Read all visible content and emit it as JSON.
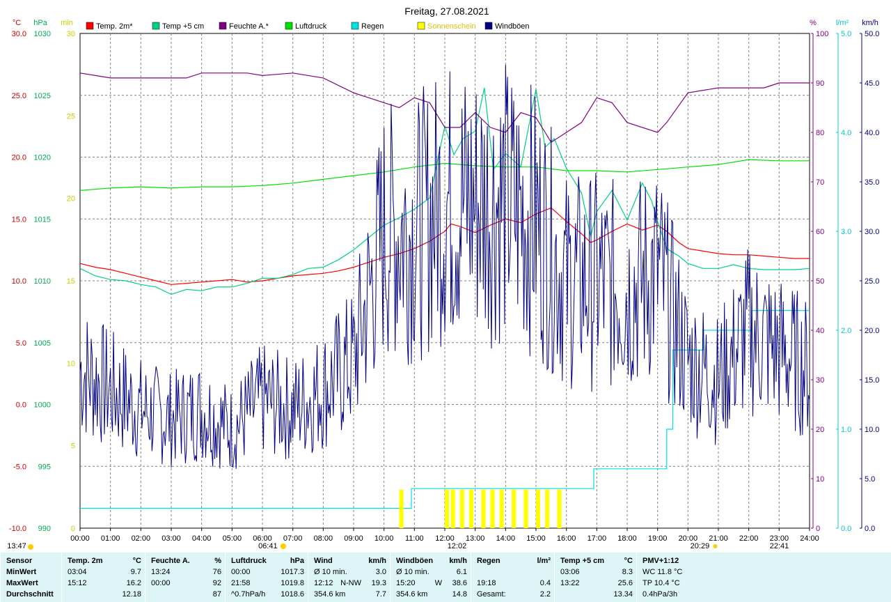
{
  "title": "Freitag, 27.08.2021",
  "colors": {
    "temp2m": "#ff0000",
    "temp5cm": "#00d080",
    "humidity": "#800080",
    "pressure": "#00e000",
    "rain": "#00e0e0",
    "sunshine": "#ffff00",
    "gusts": "#000080",
    "grid": "#808080",
    "stats_bg": "#ddf5f7"
  },
  "axis_units": {
    "temp": "°C",
    "pressure": "hPa",
    "sun": "min",
    "humidity": "%",
    "rain": "l/m²",
    "wind": "km/h"
  },
  "sun_events": {
    "sunrise": "06:41",
    "noon": "12:02",
    "sunset": "20:29",
    "moonrise": "13:47",
    "moonset": "22:41"
  },
  "chart_data": {
    "type": "line",
    "title": "Freitag, 27.08.2021",
    "x_ticks": [
      "00:00",
      "01:00",
      "02:00",
      "03:00",
      "04:00",
      "05:00",
      "06:00",
      "07:00",
      "08:00",
      "09:00",
      "10:00",
      "11:00",
      "12:00",
      "13:00",
      "14:00",
      "15:00",
      "16:00",
      "17:00",
      "18:00",
      "19:00",
      "20:00",
      "21:00",
      "22:00",
      "23:00",
      "24:00"
    ],
    "xlim": [
      0,
      24
    ],
    "grid": true,
    "legend_position": "top",
    "axes": {
      "temp": {
        "unit": "°C",
        "range": [
          -10,
          30
        ],
        "ticks": [
          "30.0",
          "25.0",
          "20.0",
          "15.0",
          "10.0",
          "5.0",
          "0.0",
          "-5.0",
          "-10.0"
        ]
      },
      "pressure": {
        "unit": "hPa",
        "range": [
          990,
          1030
        ],
        "ticks": [
          "1030",
          "1025",
          "1020",
          "1015",
          "1010",
          "1005",
          "1000",
          "995",
          "990"
        ]
      },
      "sunshine": {
        "unit": "min",
        "range": [
          0,
          30
        ],
        "ticks": [
          "30",
          "25",
          "20",
          "15",
          "10",
          "5",
          "0"
        ]
      },
      "humidity": {
        "unit": "%",
        "range": [
          0,
          100
        ],
        "ticks": [
          "100",
          "90",
          "80",
          "70",
          "60",
          "50",
          "40",
          "30",
          "20",
          "10",
          "0"
        ]
      },
      "rain": {
        "unit": "l/m²",
        "range": [
          0,
          5
        ],
        "ticks": [
          "5.0",
          "4.0",
          "3.0",
          "2.0",
          "1.0",
          "0.0"
        ]
      },
      "wind": {
        "unit": "km/h",
        "range": [
          0,
          50
        ],
        "ticks": [
          "50.0",
          "45.0",
          "40.0",
          "35.0",
          "30.0",
          "25.0",
          "20.0",
          "15.0",
          "10.0",
          "5.0",
          "0.0"
        ]
      }
    },
    "series": [
      {
        "name": "Temp. 2m*",
        "axis": "temp",
        "color": "#ff0000",
        "points": [
          [
            0,
            11.4
          ],
          [
            0.5,
            11.1
          ],
          [
            1,
            10.9
          ],
          [
            1.5,
            10.6
          ],
          [
            2,
            10.3
          ],
          [
            2.5,
            10.0
          ],
          [
            3,
            9.7
          ],
          [
            3.5,
            9.8
          ],
          [
            4,
            9.9
          ],
          [
            4.5,
            10.0
          ],
          [
            5,
            10.1
          ],
          [
            5.5,
            9.9
          ],
          [
            6,
            10.0
          ],
          [
            6.5,
            10.2
          ],
          [
            7,
            10.4
          ],
          [
            7.5,
            10.5
          ],
          [
            8,
            10.6
          ],
          [
            8.5,
            10.8
          ],
          [
            9,
            11.1
          ],
          [
            9.5,
            11.5
          ],
          [
            10,
            11.9
          ],
          [
            10.5,
            12.2
          ],
          [
            11,
            12.6
          ],
          [
            11.5,
            13.2
          ],
          [
            12,
            14.0
          ],
          [
            12.2,
            14.6
          ],
          [
            12.5,
            14.4
          ],
          [
            13,
            13.9
          ],
          [
            13.5,
            14.5
          ],
          [
            14,
            15.0
          ],
          [
            14.5,
            14.7
          ],
          [
            15,
            15.4
          ],
          [
            15.5,
            15.9
          ],
          [
            16,
            14.8
          ],
          [
            16.5,
            13.8
          ],
          [
            16.8,
            13.1
          ],
          [
            17,
            13.3
          ],
          [
            17.5,
            14.0
          ],
          [
            18,
            14.6
          ],
          [
            18.5,
            14.1
          ],
          [
            19,
            14.5
          ],
          [
            19.3,
            14.0
          ],
          [
            19.7,
            13.1
          ],
          [
            20,
            12.6
          ],
          [
            20.5,
            12.4
          ],
          [
            21,
            12.2
          ],
          [
            21.5,
            12.1
          ],
          [
            22,
            12.1
          ],
          [
            22.5,
            12.0
          ],
          [
            23,
            11.9
          ],
          [
            23.5,
            11.8
          ],
          [
            24,
            11.8
          ]
        ]
      },
      {
        "name": "Temp +5 cm",
        "axis": "temp",
        "color": "#00d080",
        "points": [
          [
            0,
            11.0
          ],
          [
            0.5,
            10.4
          ],
          [
            1,
            10.1
          ],
          [
            1.5,
            10.0
          ],
          [
            2,
            9.7
          ],
          [
            2.5,
            9.5
          ],
          [
            3,
            8.9
          ],
          [
            3.5,
            9.3
          ],
          [
            4,
            9.2
          ],
          [
            4.5,
            9.5
          ],
          [
            5,
            9.5
          ],
          [
            5.5,
            9.8
          ],
          [
            6,
            10.2
          ],
          [
            6.5,
            10.2
          ],
          [
            7,
            10.5
          ],
          [
            7.5,
            11.0
          ],
          [
            8,
            11.1
          ],
          [
            8.5,
            11.7
          ],
          [
            9,
            12.5
          ],
          [
            9.5,
            13.5
          ],
          [
            10,
            14.5
          ],
          [
            10.5,
            15.1
          ],
          [
            11,
            15.8
          ],
          [
            11.5,
            16.7
          ],
          [
            12,
            22.5
          ],
          [
            12.3,
            20.2
          ],
          [
            12.6,
            21.5
          ],
          [
            13,
            22.1
          ],
          [
            13.3,
            25.6
          ],
          [
            13.6,
            19.0
          ],
          [
            14,
            20.3
          ],
          [
            14.5,
            19.2
          ],
          [
            15,
            25.5
          ],
          [
            15.3,
            20.8
          ],
          [
            15.6,
            21.5
          ],
          [
            16,
            19.1
          ],
          [
            16.5,
            17.1
          ],
          [
            16.8,
            13.6
          ],
          [
            17,
            15.6
          ],
          [
            17.5,
            17.3
          ],
          [
            18,
            14.9
          ],
          [
            18.5,
            17.9
          ],
          [
            18.8,
            16.5
          ],
          [
            19,
            14.8
          ],
          [
            19.3,
            12.6
          ],
          [
            19.7,
            12.0
          ],
          [
            20,
            11.4
          ],
          [
            20.5,
            11.0
          ],
          [
            21,
            11.0
          ],
          [
            21.5,
            11.3
          ],
          [
            22,
            11.0
          ],
          [
            22.5,
            10.9
          ],
          [
            23,
            10.9
          ],
          [
            23.5,
            10.9
          ],
          [
            24,
            11.0
          ]
        ]
      },
      {
        "name": "Feuchte A.*",
        "axis": "humidity",
        "color": "#800080",
        "points": [
          [
            0,
            92
          ],
          [
            1,
            91
          ],
          [
            2,
            91
          ],
          [
            3,
            91
          ],
          [
            3.5,
            91
          ],
          [
            4,
            92
          ],
          [
            5,
            92
          ],
          [
            5.5,
            92
          ],
          [
            6,
            91.5
          ],
          [
            7,
            92
          ],
          [
            8,
            91
          ],
          [
            9,
            88
          ],
          [
            10,
            86
          ],
          [
            10.5,
            85
          ],
          [
            11,
            87
          ],
          [
            11.5,
            86
          ],
          [
            12,
            81
          ],
          [
            12.5,
            81
          ],
          [
            13,
            84
          ],
          [
            13.5,
            81
          ],
          [
            14,
            80
          ],
          [
            14.5,
            84
          ],
          [
            15,
            83
          ],
          [
            15.5,
            78
          ],
          [
            16,
            80
          ],
          [
            16.5,
            82
          ],
          [
            17,
            87
          ],
          [
            17.5,
            86
          ],
          [
            18,
            82
          ],
          [
            18.5,
            81
          ],
          [
            19,
            80
          ],
          [
            19.3,
            82
          ],
          [
            20,
            88
          ],
          [
            21,
            89
          ],
          [
            22,
            89
          ],
          [
            22.5,
            89
          ],
          [
            23,
            90
          ],
          [
            24,
            90
          ]
        ]
      },
      {
        "name": "Luftdruck",
        "axis": "pressure",
        "color": "#00e000",
        "points": [
          [
            0,
            1017.3
          ],
          [
            1,
            1017.5
          ],
          [
            2,
            1017.6
          ],
          [
            3,
            1017.5
          ],
          [
            4,
            1017.6
          ],
          [
            5,
            1017.6
          ],
          [
            6,
            1017.7
          ],
          [
            7,
            1017.9
          ],
          [
            8,
            1018.2
          ],
          [
            9,
            1018.5
          ],
          [
            10,
            1018.8
          ],
          [
            11,
            1019.2
          ],
          [
            12,
            1019.5
          ],
          [
            13,
            1019.3
          ],
          [
            14,
            1019.2
          ],
          [
            15,
            1019.2
          ],
          [
            16,
            1018.9
          ],
          [
            17,
            1018.9
          ],
          [
            18,
            1018.8
          ],
          [
            19,
            1019.0
          ],
          [
            20,
            1019.2
          ],
          [
            21,
            1019.4
          ],
          [
            22,
            1019.8
          ],
          [
            23,
            1019.7
          ],
          [
            24,
            1019.7
          ]
        ]
      },
      {
        "name": "Regen",
        "axis": "rain",
        "color": "#00e0e0",
        "points": [
          [
            0,
            0.2
          ],
          [
            10.8,
            0.2
          ],
          [
            10.9,
            0.4
          ],
          [
            16.8,
            0.4
          ],
          [
            16.9,
            0.6
          ],
          [
            19.0,
            0.6
          ],
          [
            19.3,
            1.0
          ],
          [
            19.5,
            1.8
          ],
          [
            20,
            1.8
          ],
          [
            20.5,
            2.0
          ],
          [
            22,
            2.0
          ],
          [
            22.1,
            2.2
          ],
          [
            24,
            2.2
          ]
        ]
      },
      {
        "name": "Sonnenschein",
        "axis": "sunshine",
        "color": "#ffff00",
        "bars": [
          [
            10.5,
            2
          ],
          [
            12.0,
            2
          ],
          [
            12.2,
            2
          ],
          [
            12.5,
            2
          ],
          [
            12.8,
            2
          ],
          [
            13.2,
            2
          ],
          [
            13.5,
            2
          ],
          [
            13.8,
            2
          ],
          [
            14.2,
            2
          ],
          [
            14.6,
            2
          ],
          [
            15.0,
            2
          ],
          [
            15.3,
            2
          ],
          [
            15.7,
            2
          ]
        ]
      },
      {
        "name": "Windböen",
        "axis": "wind",
        "color": "#000080",
        "hourly_values": [
          16,
          14,
          12,
          11,
          12,
          10,
          13,
          12,
          14,
          17,
          30,
          30,
          33,
          33,
          33,
          31,
          25,
          25,
          24,
          26,
          17,
          15,
          20,
          18,
          16
        ]
      }
    ]
  },
  "stats": {
    "columns": [
      {
        "header": "Sensor",
        "unit": "",
        "rows": [
          [
            "MinWert",
            "",
            ""
          ],
          [
            "MaxWert",
            "",
            ""
          ],
          [
            "Durchschnitt",
            "",
            ""
          ]
        ]
      },
      {
        "header": "Temp. 2m",
        "unit": "°C",
        "rows": [
          [
            "03:04",
            "",
            "9.7"
          ],
          [
            "15:12",
            "",
            "16.2"
          ],
          [
            "",
            "",
            "12.18"
          ]
        ]
      },
      {
        "header": "Feuchte A.",
        "unit": "%",
        "rows": [
          [
            "13:24",
            "",
            "76"
          ],
          [
            "00:00",
            "",
            "92"
          ],
          [
            "",
            "",
            "87"
          ]
        ]
      },
      {
        "header": "Luftdruck",
        "unit": "hPa",
        "rows": [
          [
            "00:00",
            "",
            "1017.3"
          ],
          [
            "21:58",
            "",
            "1019.8"
          ],
          [
            "^0.7hPa/h",
            "",
            "1018.6"
          ]
        ]
      },
      {
        "header": "Wind",
        "unit": "km/h",
        "rows": [
          [
            "Ø 10 min.",
            "",
            "3.0"
          ],
          [
            "12:12",
            "N-NW",
            "19.3"
          ],
          [
            "354.6 km",
            "",
            "7.7"
          ]
        ]
      },
      {
        "header": "Windböen",
        "unit": "km/h",
        "rows": [
          [
            "Ø 10 min.",
            "",
            "6.1"
          ],
          [
            "15:20",
            "W",
            "38.6"
          ],
          [
            "354.6 km",
            "",
            "14.8"
          ]
        ]
      },
      {
        "header": "Regen",
        "unit": "l/m²",
        "rows": [
          [
            "",
            "",
            ""
          ],
          [
            "19:18",
            "",
            "0.4"
          ],
          [
            "Gesamt:",
            "",
            "2.2"
          ]
        ]
      },
      {
        "header": "Temp +5 cm",
        "unit": "°C",
        "rows": [
          [
            "03:06",
            "",
            "8.3"
          ],
          [
            "13:22",
            "",
            "25.6"
          ],
          [
            "",
            "",
            "13.34"
          ]
        ]
      },
      {
        "header": "PMV+1:12",
        "unit": "",
        "rows": [
          [
            "WC 11.8 °C",
            "",
            ""
          ],
          [
            "TP 10.4 °C",
            "",
            ""
          ],
          [
            "0.4hPa/3h",
            "",
            ""
          ]
        ]
      }
    ]
  }
}
